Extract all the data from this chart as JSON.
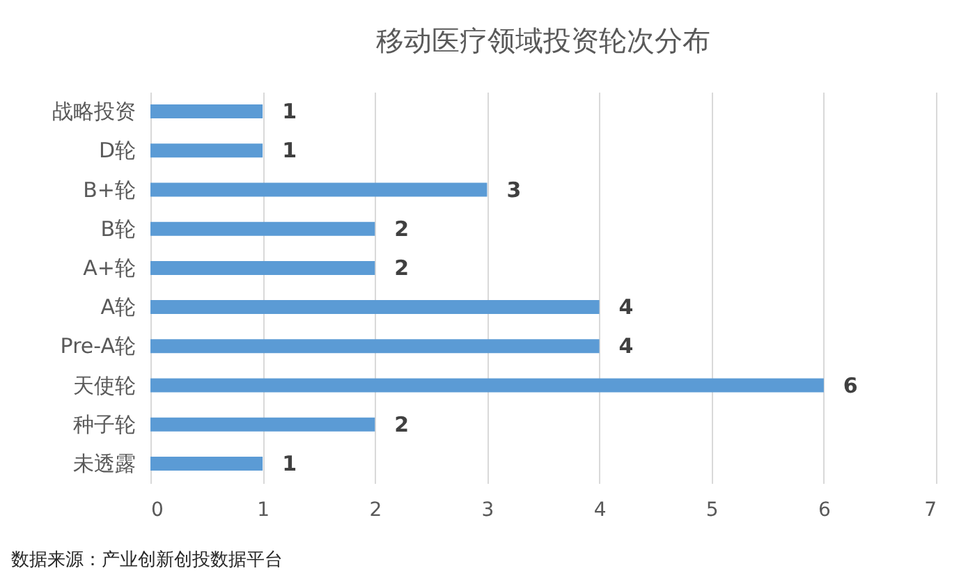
{
  "chart_data": {
    "type": "bar",
    "orientation": "horizontal",
    "title": "移动医疗领域投资轮次分布",
    "categories": [
      "战略投资",
      "D轮",
      "B+轮",
      "B轮",
      "A+轮",
      "A轮",
      "Pre-A轮",
      "天使轮",
      "种子轮",
      "未透露"
    ],
    "values": [
      1,
      1,
      3,
      2,
      2,
      4,
      4,
      6,
      2,
      1
    ],
    "color": "#5b9bd5",
    "xlim": [
      0,
      7
    ],
    "xticks": [
      0,
      1,
      2,
      3,
      4,
      5,
      6,
      7
    ],
    "grid": "x",
    "data_labels": true,
    "annotations": [
      "数据来源：产业创新创投数据平台"
    ]
  }
}
